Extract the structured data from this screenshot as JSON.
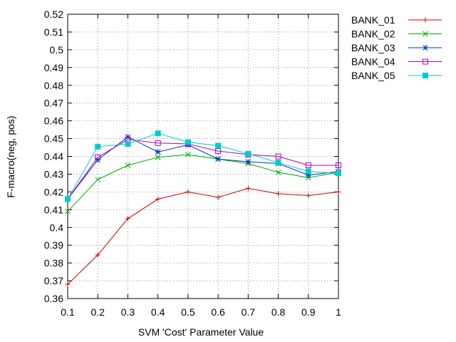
{
  "chart_data": {
    "type": "line",
    "xlabel": "SVM 'Cost' Parameter Value",
    "ylabel": "F-macro(neg, pos)",
    "x": [
      0.1,
      0.2,
      0.3,
      0.4,
      0.5,
      0.6,
      0.7,
      0.8,
      0.9,
      1.0
    ],
    "x_tick_labels": [
      "0.1",
      "0.2",
      "0.3",
      "0.4",
      "0.5",
      "0.6",
      "0.7",
      "0.8",
      "0.9",
      "1"
    ],
    "y_ticks": [
      0.36,
      0.37,
      0.38,
      0.39,
      0.4,
      0.41,
      0.42,
      0.43,
      0.44,
      0.45,
      0.46,
      0.47,
      0.48,
      0.49,
      0.5,
      0.51,
      0.52
    ],
    "y_tick_labels": [
      "0.36",
      "0.37",
      "0.38",
      "0.39",
      "0.4",
      "0.41",
      "0.42",
      "0.43",
      "0.44",
      "0.45",
      "0.46",
      "0.47",
      "0.48",
      "0.49",
      "0.5",
      "0.51",
      "0.52"
    ],
    "xlim": [
      0.1,
      1.0
    ],
    "ylim": [
      0.36,
      0.52
    ],
    "grid": true,
    "legend_position": "outside-right-top",
    "series": [
      {
        "name": "BANK_01",
        "color": "#cc0000",
        "marker": "plus",
        "values": [
          0.368,
          0.3845,
          0.405,
          0.416,
          0.42,
          0.417,
          0.422,
          0.419,
          0.418,
          0.42
        ]
      },
      {
        "name": "BANK_02",
        "color": "#00aa00",
        "marker": "cross",
        "values": [
          0.409,
          0.427,
          0.435,
          0.4395,
          0.441,
          0.4385,
          0.436,
          0.431,
          0.428,
          0.431
        ]
      },
      {
        "name": "BANK_03",
        "color": "#0033cc",
        "marker": "star",
        "values": [
          0.416,
          0.438,
          0.451,
          0.4425,
          0.4465,
          0.4385,
          0.437,
          0.436,
          0.4295,
          0.4315
        ]
      },
      {
        "name": "BANK_04",
        "color": "#aa00cc",
        "marker": "open-square",
        "values": [
          0.416,
          0.4395,
          0.4495,
          0.4475,
          0.447,
          0.443,
          0.441,
          0.44,
          0.435,
          0.435
        ]
      },
      {
        "name": "BANK_05",
        "color": "#00cccc",
        "marker": "filled-square",
        "values": [
          0.416,
          0.4455,
          0.447,
          0.453,
          0.448,
          0.446,
          0.4415,
          0.4365,
          0.4315,
          0.4305
        ]
      }
    ]
  }
}
